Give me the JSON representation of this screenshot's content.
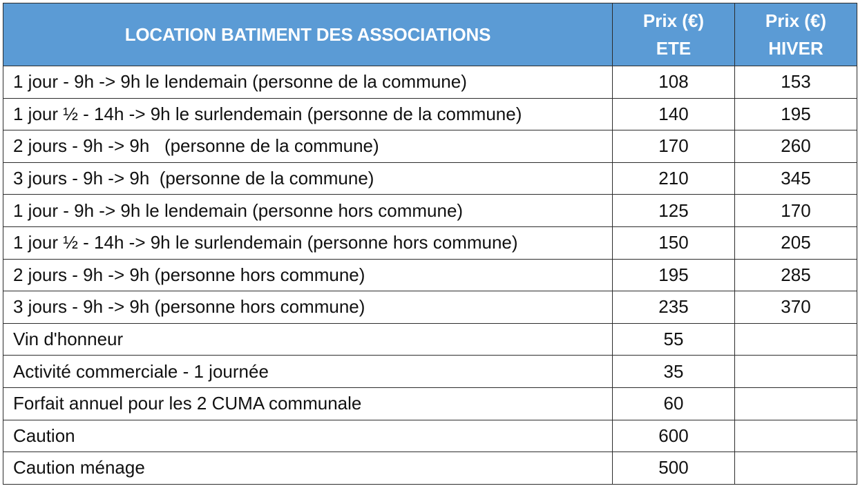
{
  "table": {
    "header": {
      "title": "LOCATION BATIMENT DES ASSOCIATIONS",
      "ete_line1": "Prix (€)",
      "ete_line2": "ETE",
      "hiver_line1": "Prix (€)",
      "hiver_line2": "HIVER"
    },
    "rows": [
      {
        "label": "1 jour - 9h -> 9h le lendemain (personne de la commune)",
        "ete": "108",
        "hiver": "153"
      },
      {
        "label": "1 jour ½ - 14h -> 9h le surlendemain (personne de la commune)",
        "ete": "140",
        "hiver": "195"
      },
      {
        "label": "2 jours - 9h -> 9h   (personne de la commune)",
        "ete": "170",
        "hiver": "260"
      },
      {
        "label": "3 jours - 9h -> 9h  (personne de la commune)",
        "ete": "210",
        "hiver": "345"
      },
      {
        "label": "1 jour - 9h -> 9h le lendemain (personne hors commune)",
        "ete": "125",
        "hiver": "170"
      },
      {
        "label": "1 jour ½ - 14h -> 9h le surlendemain (personne hors commune)",
        "ete": "150",
        "hiver": "205"
      },
      {
        "label": "2 jours - 9h -> 9h (personne hors commune)",
        "ete": "195",
        "hiver": "285"
      },
      {
        "label": "3 jours - 9h -> 9h (personne hors commune)",
        "ete": "235",
        "hiver": "370"
      },
      {
        "label": "Vin d'honneur",
        "ete": "55",
        "hiver": ""
      },
      {
        "label": "Activité commerciale - 1 journée",
        "ete": "35",
        "hiver": ""
      },
      {
        "label": "Forfait annuel pour les 2 CUMA communale",
        "ete": "60",
        "hiver": ""
      },
      {
        "label": "Caution",
        "ete": "600",
        "hiver": ""
      },
      {
        "label": "Caution ménage",
        "ete": "500",
        "hiver": ""
      }
    ]
  }
}
